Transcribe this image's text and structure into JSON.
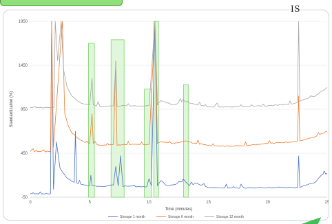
{
  "chart_data": {
    "type": "line",
    "annotation": "IS",
    "xlabel": "Time (minutes)",
    "ylabel": "Standardization (%)",
    "xlim": [
      0,
      25
    ],
    "ylim": [
      -50,
      1950
    ],
    "x_ticks": [
      "0",
      "5",
      "10",
      "15",
      "20",
      "25"
    ],
    "x_tick_values": [
      0,
      5,
      10,
      15,
      20,
      25
    ],
    "y_ticks": [
      "-50",
      "450",
      "950",
      "1450",
      "1950"
    ],
    "y_tick_values": [
      -50,
      450,
      950,
      1450,
      1950
    ],
    "grid": true,
    "legend_position": "bottom",
    "series": [
      {
        "name": "Storage 1 month",
        "color": "#4a72c4",
        "baseline": 60,
        "points": [
          [
            0,
            -10
          ],
          [
            1.7,
            -10
          ],
          [
            1.8,
            1950
          ],
          [
            1.95,
            40
          ],
          [
            2.2,
            580
          ],
          [
            2.5,
            280
          ],
          [
            3,
            180
          ],
          [
            3.5,
            130
          ],
          [
            3.7,
            120
          ],
          [
            3.8,
            700
          ],
          [
            3.9,
            110
          ],
          [
            4.5,
            90
          ],
          [
            5,
            80
          ],
          [
            5.1,
            200
          ],
          [
            5.2,
            80
          ],
          [
            6,
            70
          ],
          [
            7,
            90
          ],
          [
            7.2,
            300
          ],
          [
            7.4,
            80
          ],
          [
            7.6,
            420
          ],
          [
            7.8,
            70
          ],
          [
            8,
            80
          ],
          [
            9,
            70
          ],
          [
            9.8,
            70
          ],
          [
            10,
            160
          ],
          [
            10.2,
            80
          ],
          [
            10.5,
            1950
          ],
          [
            10.7,
            80
          ],
          [
            11,
            140
          ],
          [
            11.5,
            80
          ],
          [
            12,
            90
          ],
          [
            13,
            140
          ],
          [
            13.4,
            80
          ],
          [
            14,
            110
          ],
          [
            15,
            60
          ],
          [
            16,
            55
          ],
          [
            18,
            55
          ],
          [
            20,
            60
          ],
          [
            22,
            60
          ],
          [
            22.5,
            60
          ],
          [
            22.6,
            420
          ],
          [
            22.7,
            60
          ],
          [
            23,
            80
          ],
          [
            24,
            120
          ],
          [
            24.5,
            200
          ],
          [
            25,
            220
          ]
        ]
      },
      {
        "name": "Storage 6 month",
        "color": "#ec7c30",
        "baseline": 520,
        "points": [
          [
            0,
            470
          ],
          [
            1.7,
            470
          ],
          [
            1.8,
            1950
          ],
          [
            1.95,
            520
          ],
          [
            2.7,
            1950
          ],
          [
            2.9,
            900
          ],
          [
            3.2,
            760
          ],
          [
            3.5,
            680
          ],
          [
            4,
            620
          ],
          [
            4.5,
            580
          ],
          [
            5,
            560
          ],
          [
            5.2,
            900
          ],
          [
            5.3,
            560
          ],
          [
            6,
            540
          ],
          [
            7,
            550
          ],
          [
            7.2,
            1500
          ],
          [
            7.3,
            540
          ],
          [
            8,
            550
          ],
          [
            9,
            550
          ],
          [
            10,
            550
          ],
          [
            10.5,
            1950
          ],
          [
            10.7,
            560
          ],
          [
            11,
            580
          ],
          [
            12,
            560
          ],
          [
            13,
            590
          ],
          [
            14,
            560
          ],
          [
            15,
            540
          ],
          [
            16,
            530
          ],
          [
            18,
            535
          ],
          [
            20,
            560
          ],
          [
            22,
            580
          ],
          [
            22.5,
            590
          ],
          [
            22.6,
            1100
          ],
          [
            22.7,
            590
          ],
          [
            23,
            600
          ],
          [
            24,
            640
          ],
          [
            25,
            700
          ]
        ]
      },
      {
        "name": "Storage 12 month",
        "color": "#a5a5a5",
        "baseline": 960,
        "points": [
          [
            0,
            970
          ],
          [
            2,
            970
          ],
          [
            2.1,
            1950
          ],
          [
            2.3,
            1500
          ],
          [
            2.6,
            1950
          ],
          [
            2.8,
            1400
          ],
          [
            3.1,
            1200
          ],
          [
            3.5,
            1100
          ],
          [
            4,
            1040
          ],
          [
            4.5,
            1010
          ],
          [
            5,
            1000
          ],
          [
            5.2,
            1300
          ],
          [
            5.3,
            1000
          ],
          [
            6,
            980
          ],
          [
            7,
            990
          ],
          [
            7.2,
            1450
          ],
          [
            7.3,
            985
          ],
          [
            8,
            990
          ],
          [
            9,
            985
          ],
          [
            10,
            990
          ],
          [
            10.5,
            1950
          ],
          [
            10.7,
            1000
          ],
          [
            11,
            1050
          ],
          [
            12,
            1000
          ],
          [
            13,
            1040
          ],
          [
            14,
            1000
          ],
          [
            15,
            980
          ],
          [
            16,
            975
          ],
          [
            18,
            980
          ],
          [
            20,
            990
          ],
          [
            22,
            1010
          ],
          [
            22.5,
            1030
          ],
          [
            22.6,
            1950
          ],
          [
            22.7,
            1040
          ],
          [
            23,
            1060
          ],
          [
            24,
            1100
          ],
          [
            25,
            1200
          ]
        ]
      }
    ],
    "highlights": [
      {
        "x_start": 4.9,
        "x_end": 5.4,
        "y_top": 1700
      },
      {
        "x_start": 6.8,
        "x_end": 7.9,
        "y_top": 1740
      },
      {
        "x_start": 9.6,
        "x_end": 10.2,
        "y_top": 1180
      },
      {
        "x_start": 10.4,
        "x_end": 10.8,
        "y_top": 1950
      },
      {
        "x_start": 12.9,
        "x_end": 13.3,
        "y_top": 1230
      }
    ]
  },
  "colors": {
    "highlight_fill": "#c9f0c0",
    "highlight_stroke": "#7bd36a",
    "banner": "#8fe07a",
    "arrow": "#3fbf55"
  }
}
